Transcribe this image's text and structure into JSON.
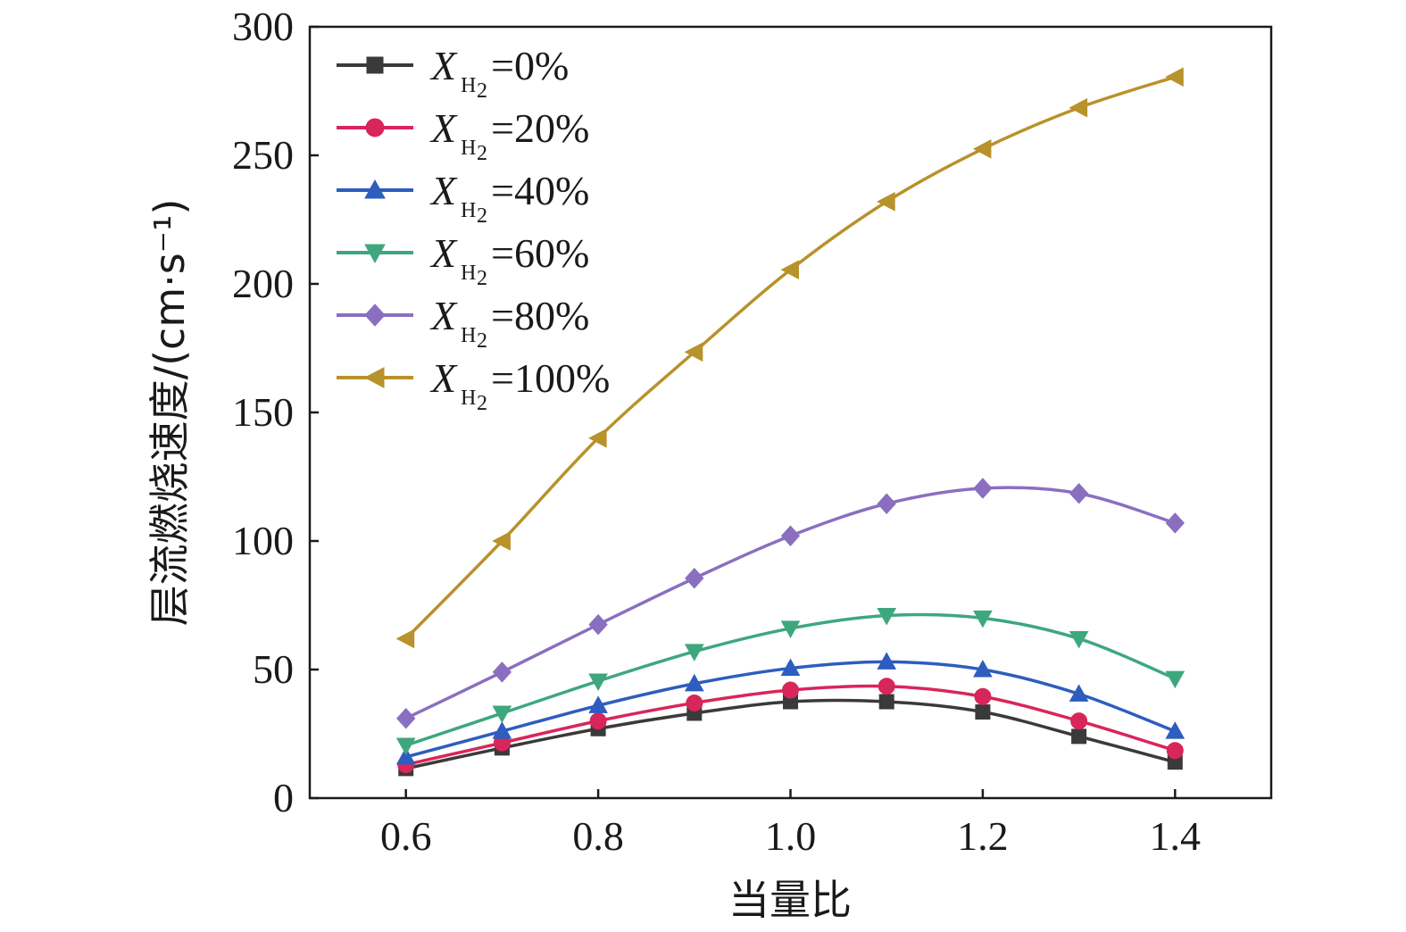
{
  "chart_data": {
    "type": "line",
    "xlabel": "当量比",
    "ylabel": "层流燃烧速度/(cm·s⁻¹)",
    "xlim": [
      0.5,
      1.5
    ],
    "ylim": [
      0,
      300
    ],
    "xticks": [
      "0.6",
      "0.8",
      "1.0",
      "1.2",
      "1.4"
    ],
    "yticks": [
      "0",
      "50",
      "100",
      "150",
      "200",
      "250",
      "300"
    ],
    "grid": false,
    "legend_position": "top-left",
    "x": [
      0.6,
      0.7,
      0.8,
      0.9,
      1.0,
      1.1,
      1.2,
      1.3,
      1.4
    ],
    "series": [
      {
        "name": "X_H2=0%",
        "legend": {
          "var": "X",
          "sub": "H",
          "sub2": "2",
          "rest": "=0%"
        },
        "color": "#3a3a3a",
        "marker": "square",
        "values": [
          11.5,
          19.5,
          27,
          33,
          37.5,
          37.5,
          33.5,
          24,
          14
        ]
      },
      {
        "name": "X_H2=20%",
        "legend": {
          "var": "X",
          "sub": "H",
          "sub2": "2",
          "rest": "=20%"
        },
        "color": "#d8265a",
        "marker": "circle",
        "values": [
          13,
          21.5,
          30,
          37,
          42,
          43.5,
          39.5,
          30,
          18.5
        ]
      },
      {
        "name": "X_H2=40%",
        "legend": {
          "var": "X",
          "sub": "H",
          "sub2": "2",
          "rest": "=40%"
        },
        "color": "#2d5dbf",
        "marker": "triangle-up",
        "values": [
          16,
          26,
          36,
          44.5,
          50.5,
          53,
          50,
          40.5,
          26
        ]
      },
      {
        "name": "X_H2=60%",
        "legend": {
          "var": "X",
          "sub": "H",
          "sub2": "2",
          "rest": "=60%"
        },
        "color": "#3ea77e",
        "marker": "triangle-down",
        "values": [
          20.5,
          33,
          45.5,
          57,
          66,
          71,
          70,
          62,
          46.5
        ]
      },
      {
        "name": "X_H2=80%",
        "legend": {
          "var": "X",
          "sub": "H",
          "sub2": "2",
          "rest": "=80%"
        },
        "color": "#8a6fc0",
        "marker": "diamond",
        "values": [
          31,
          49,
          67.5,
          85.5,
          102,
          114.5,
          120.5,
          118.5,
          107
        ]
      },
      {
        "name": "X_H2=100%",
        "legend": {
          "var": "X",
          "sub": "H",
          "sub2": "2",
          "rest": "=100%"
        },
        "color": "#b8922a",
        "marker": "triangle-left",
        "values": [
          62,
          100,
          140,
          173.5,
          205.5,
          232,
          252.5,
          268.5,
          280.5
        ]
      }
    ]
  }
}
